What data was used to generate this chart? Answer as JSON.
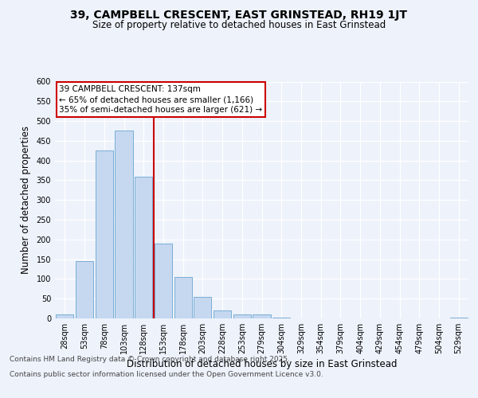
{
  "title": "39, CAMPBELL CRESCENT, EAST GRINSTEAD, RH19 1JT",
  "subtitle": "Size of property relative to detached houses in East Grinstead",
  "xlabel": "Distribution of detached houses by size in East Grinstead",
  "ylabel": "Number of detached properties",
  "categories": [
    "28sqm",
    "53sqm",
    "78sqm",
    "103sqm",
    "128sqm",
    "153sqm",
    "178sqm",
    "203sqm",
    "228sqm",
    "253sqm",
    "279sqm",
    "304sqm",
    "329sqm",
    "354sqm",
    "379sqm",
    "404sqm",
    "429sqm",
    "454sqm",
    "479sqm",
    "504sqm",
    "529sqm"
  ],
  "values": [
    10,
    145,
    425,
    475,
    360,
    190,
    105,
    55,
    20,
    10,
    10,
    3,
    0,
    0,
    0,
    0,
    0,
    0,
    0,
    0,
    2
  ],
  "bar_color": "#c5d8f0",
  "bar_edge_color": "#7aaed6",
  "property_line_color": "#cc0000",
  "property_bin_index": 4,
  "annotation_text_line1": "39 CAMPBELL CRESCENT: 137sqm",
  "annotation_text_line2": "← 65% of detached houses are smaller (1,166)",
  "annotation_text_line3": "35% of semi-detached houses are larger (621) →",
  "ylim": [
    0,
    600
  ],
  "yticks": [
    0,
    50,
    100,
    150,
    200,
    250,
    300,
    350,
    400,
    450,
    500,
    550,
    600
  ],
  "background_color": "#edf2fb",
  "plot_bg_color": "#edf2fb",
  "footer_line1": "Contains HM Land Registry data © Crown copyright and database right 2025.",
  "footer_line2": "Contains public sector information licensed under the Open Government Licence v3.0.",
  "title_fontsize": 10,
  "subtitle_fontsize": 8.5,
  "tick_fontsize": 7,
  "label_fontsize": 8.5,
  "annotation_fontsize": 7.5,
  "footer_fontsize": 6.5
}
